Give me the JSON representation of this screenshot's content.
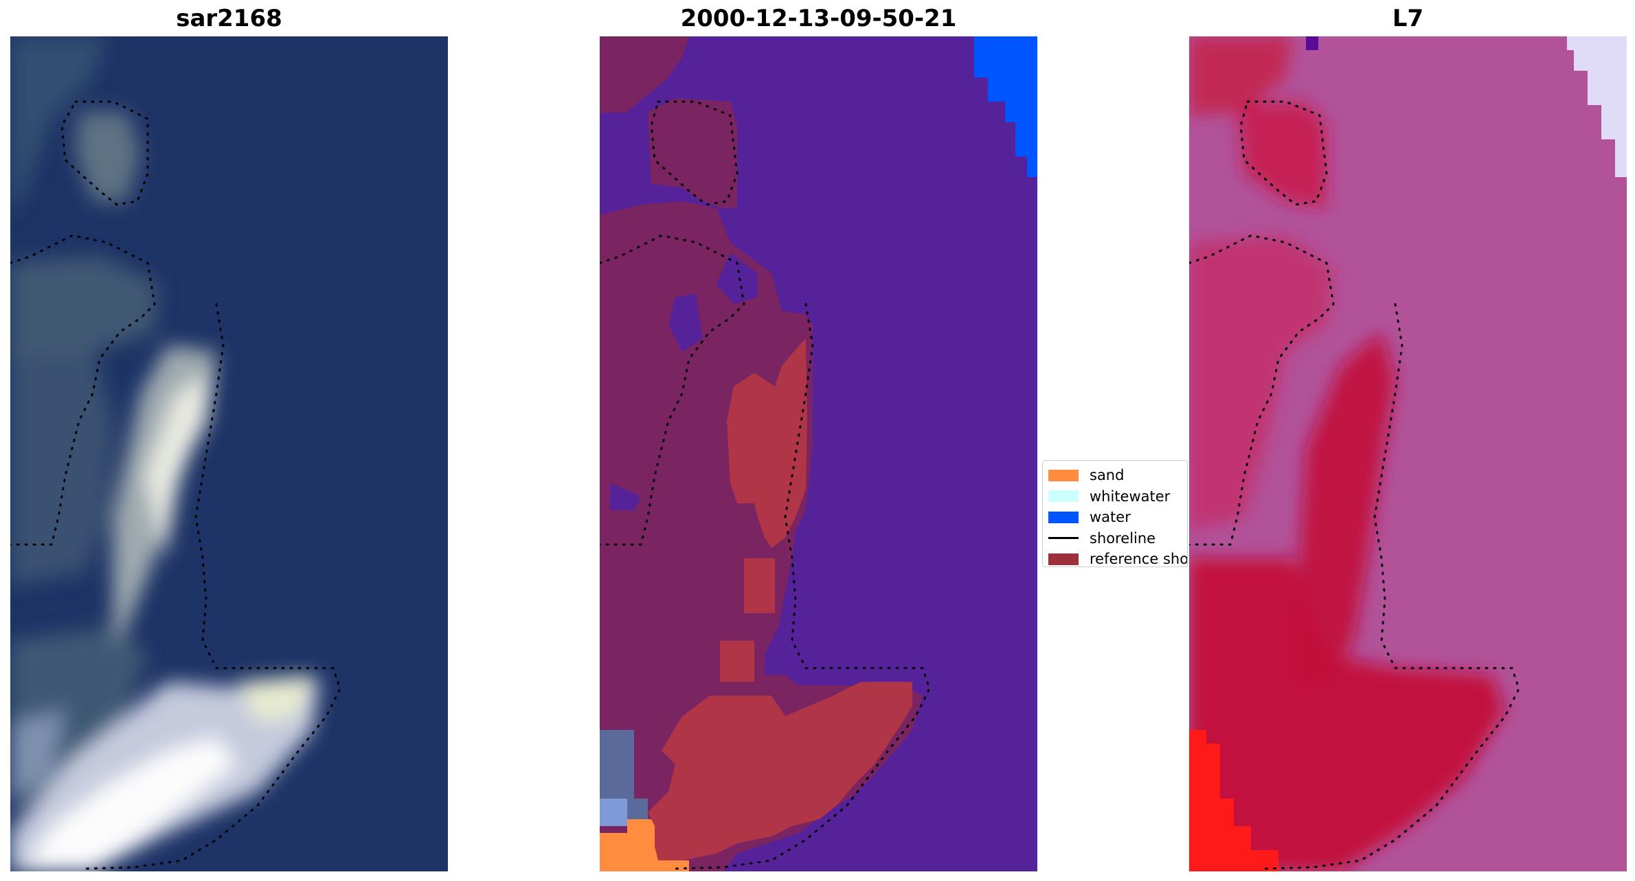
{
  "panels": [
    {
      "title": "sar2168"
    },
    {
      "title": "2000-12-13-09-50-21"
    },
    {
      "title": "L7"
    }
  ],
  "legend": {
    "entries": [
      {
        "label": "sand",
        "color": "#ff8c3f",
        "kind": "patch"
      },
      {
        "label": "whitewater",
        "color": "#ccffff",
        "kind": "patch"
      },
      {
        "label": "water",
        "color": "#0055ff",
        "kind": "patch"
      },
      {
        "label": "shoreline",
        "color": "#000000",
        "kind": "line"
      },
      {
        "label": "reference shoreline buffer",
        "color": "#9c2f3a",
        "kind": "patch"
      }
    ]
  },
  "colors": {
    "rgb_water": "#1e3466",
    "rgb_land": "#e4e6ee",
    "class_background": "#55229a",
    "class_land_overlay": "#7a2462",
    "false_color_water": "#b2539a",
    "false_color_land": "#c8093a"
  }
}
